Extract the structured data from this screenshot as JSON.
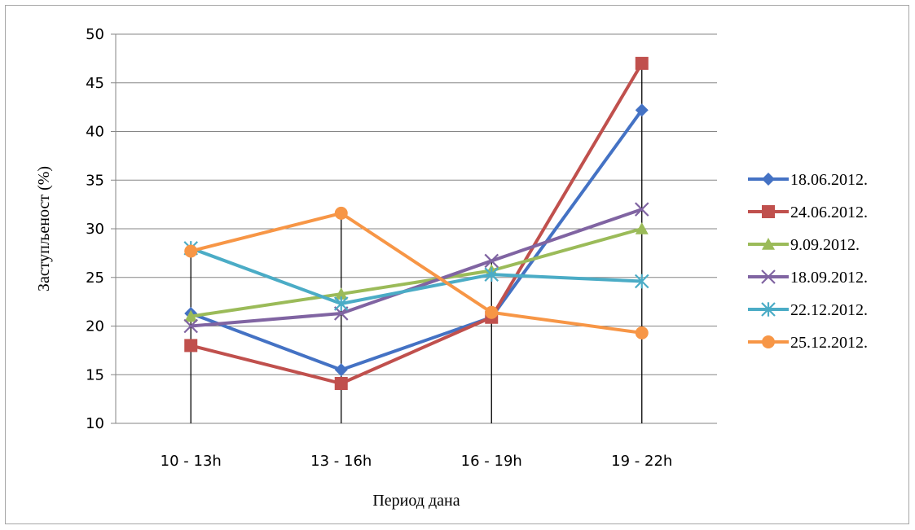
{
  "chart_data": {
    "type": "line",
    "title": "",
    "xlabel": "Период дана",
    "ylabel": "Заступљеност (%)",
    "ylim": [
      10,
      50
    ],
    "ytick_step": 5,
    "categories": [
      "10 - 13h",
      "13 - 16h",
      "16 - 19h",
      "19 - 22h"
    ],
    "grid": "horizontal",
    "drop_lines": true,
    "legend_position": "right",
    "series": [
      {
        "name": "18.06.2012.",
        "values": [
          21.3,
          15.5,
          20.9,
          42.2
        ],
        "color": "#4472c4",
        "marker": "diamond"
      },
      {
        "name": "24.06.2012.",
        "values": [
          18.0,
          14.1,
          20.9,
          47.0
        ],
        "color": "#c0504d",
        "marker": "square"
      },
      {
        "name": "9.09.2012.",
        "values": [
          21.0,
          23.3,
          25.7,
          30.0
        ],
        "color": "#9bbb59",
        "marker": "triangle"
      },
      {
        "name": "18.09.2012.",
        "values": [
          20.0,
          21.3,
          26.7,
          32.0
        ],
        "color": "#8064a2",
        "marker": "x"
      },
      {
        "name": "22.12.2012.",
        "values": [
          28.0,
          22.3,
          25.3,
          24.6
        ],
        "color": "#4bacc6",
        "marker": "star"
      },
      {
        "name": "25.12.2012.",
        "values": [
          27.7,
          31.6,
          21.4,
          19.3
        ],
        "color": "#f79646",
        "marker": "circle"
      }
    ]
  }
}
